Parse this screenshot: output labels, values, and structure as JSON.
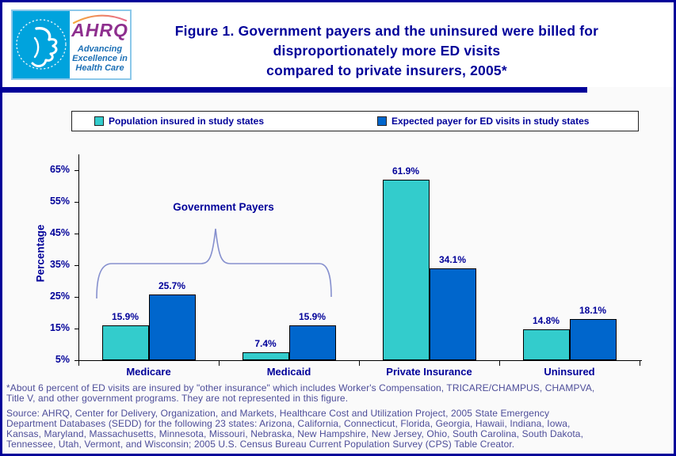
{
  "header": {
    "logo": {
      "acronym": "AHRQ",
      "tagline_lines": [
        "Advancing",
        "Excellence in",
        "Health Care"
      ]
    },
    "title_lines": [
      "Figure 1. Government payers and the uninsured were billed for",
      "disproportionately more ED visits",
      "compared to private insurers, 2005*"
    ]
  },
  "legend": {
    "items": [
      {
        "label": "Population insured in study states",
        "color": "#33CCCC"
      },
      {
        "label": "Expected payer for ED visits in study states",
        "color": "#0066CC"
      }
    ]
  },
  "chart_data": {
    "type": "bar",
    "title": "",
    "categories": [
      "Medicare",
      "Medicaid",
      "Private Insurance",
      "Uninsured"
    ],
    "series": [
      {
        "name": "Population insured in study states",
        "color": "#33CCCC",
        "values": [
          15.9,
          7.4,
          61.9,
          14.8
        ]
      },
      {
        "name": "Expected payer for ED visits in study states",
        "color": "#0066CC",
        "values": [
          25.7,
          15.9,
          34.1,
          18.1
        ]
      }
    ],
    "ylabel": "Percentage",
    "y_ticks": [
      65,
      55,
      45,
      35,
      25,
      15,
      5
    ],
    "y_min": 5,
    "y_max": 70,
    "value_suffix": "%",
    "grid": false,
    "legend_position": "top",
    "annotation": "Government Payers",
    "annotation_target_categories": [
      "Medicare",
      "Medicaid"
    ]
  },
  "footnote_lines": [
    "*About 6 percent of ED visits are insured by \"other insurance\" which includes Worker's Compensation, TRICARE/CHAMPUS, CHAMPVA,",
    "Title V, and other government programs. They are not represented in this figure."
  ],
  "source_lines": [
    "Source: AHRQ, Center for Delivery, Organization, and Markets, Healthcare Cost and Utilization Project, 2005 State Emergency",
    "Department Databases (SEDD) for the following 23 states: Arizona, California, Connecticut, Florida, Georgia, Hawaii, Indiana, Iowa,",
    "Kansas, Maryland, Massachusetts, Minnesota, Missouri, Nebraska, New Hampshire, New Jersey, Ohio, South Carolina, South Dakota,",
    "Tennessee, Utah, Vermont, and Wisconsin; 2005 U.S. Census Bureau Current Population Survey (CPS) Table Creator."
  ],
  "colors": {
    "accent_navy": "#000099",
    "series_teal": "#33CCCC",
    "series_blue": "#0066CC",
    "note_text": "#4D4D99",
    "brace": "#8690CE",
    "hhs_blue": "#00A3DD",
    "ahrq_purple": "#8E2F8E",
    "tagline_blue": "#1B6FB5"
  }
}
